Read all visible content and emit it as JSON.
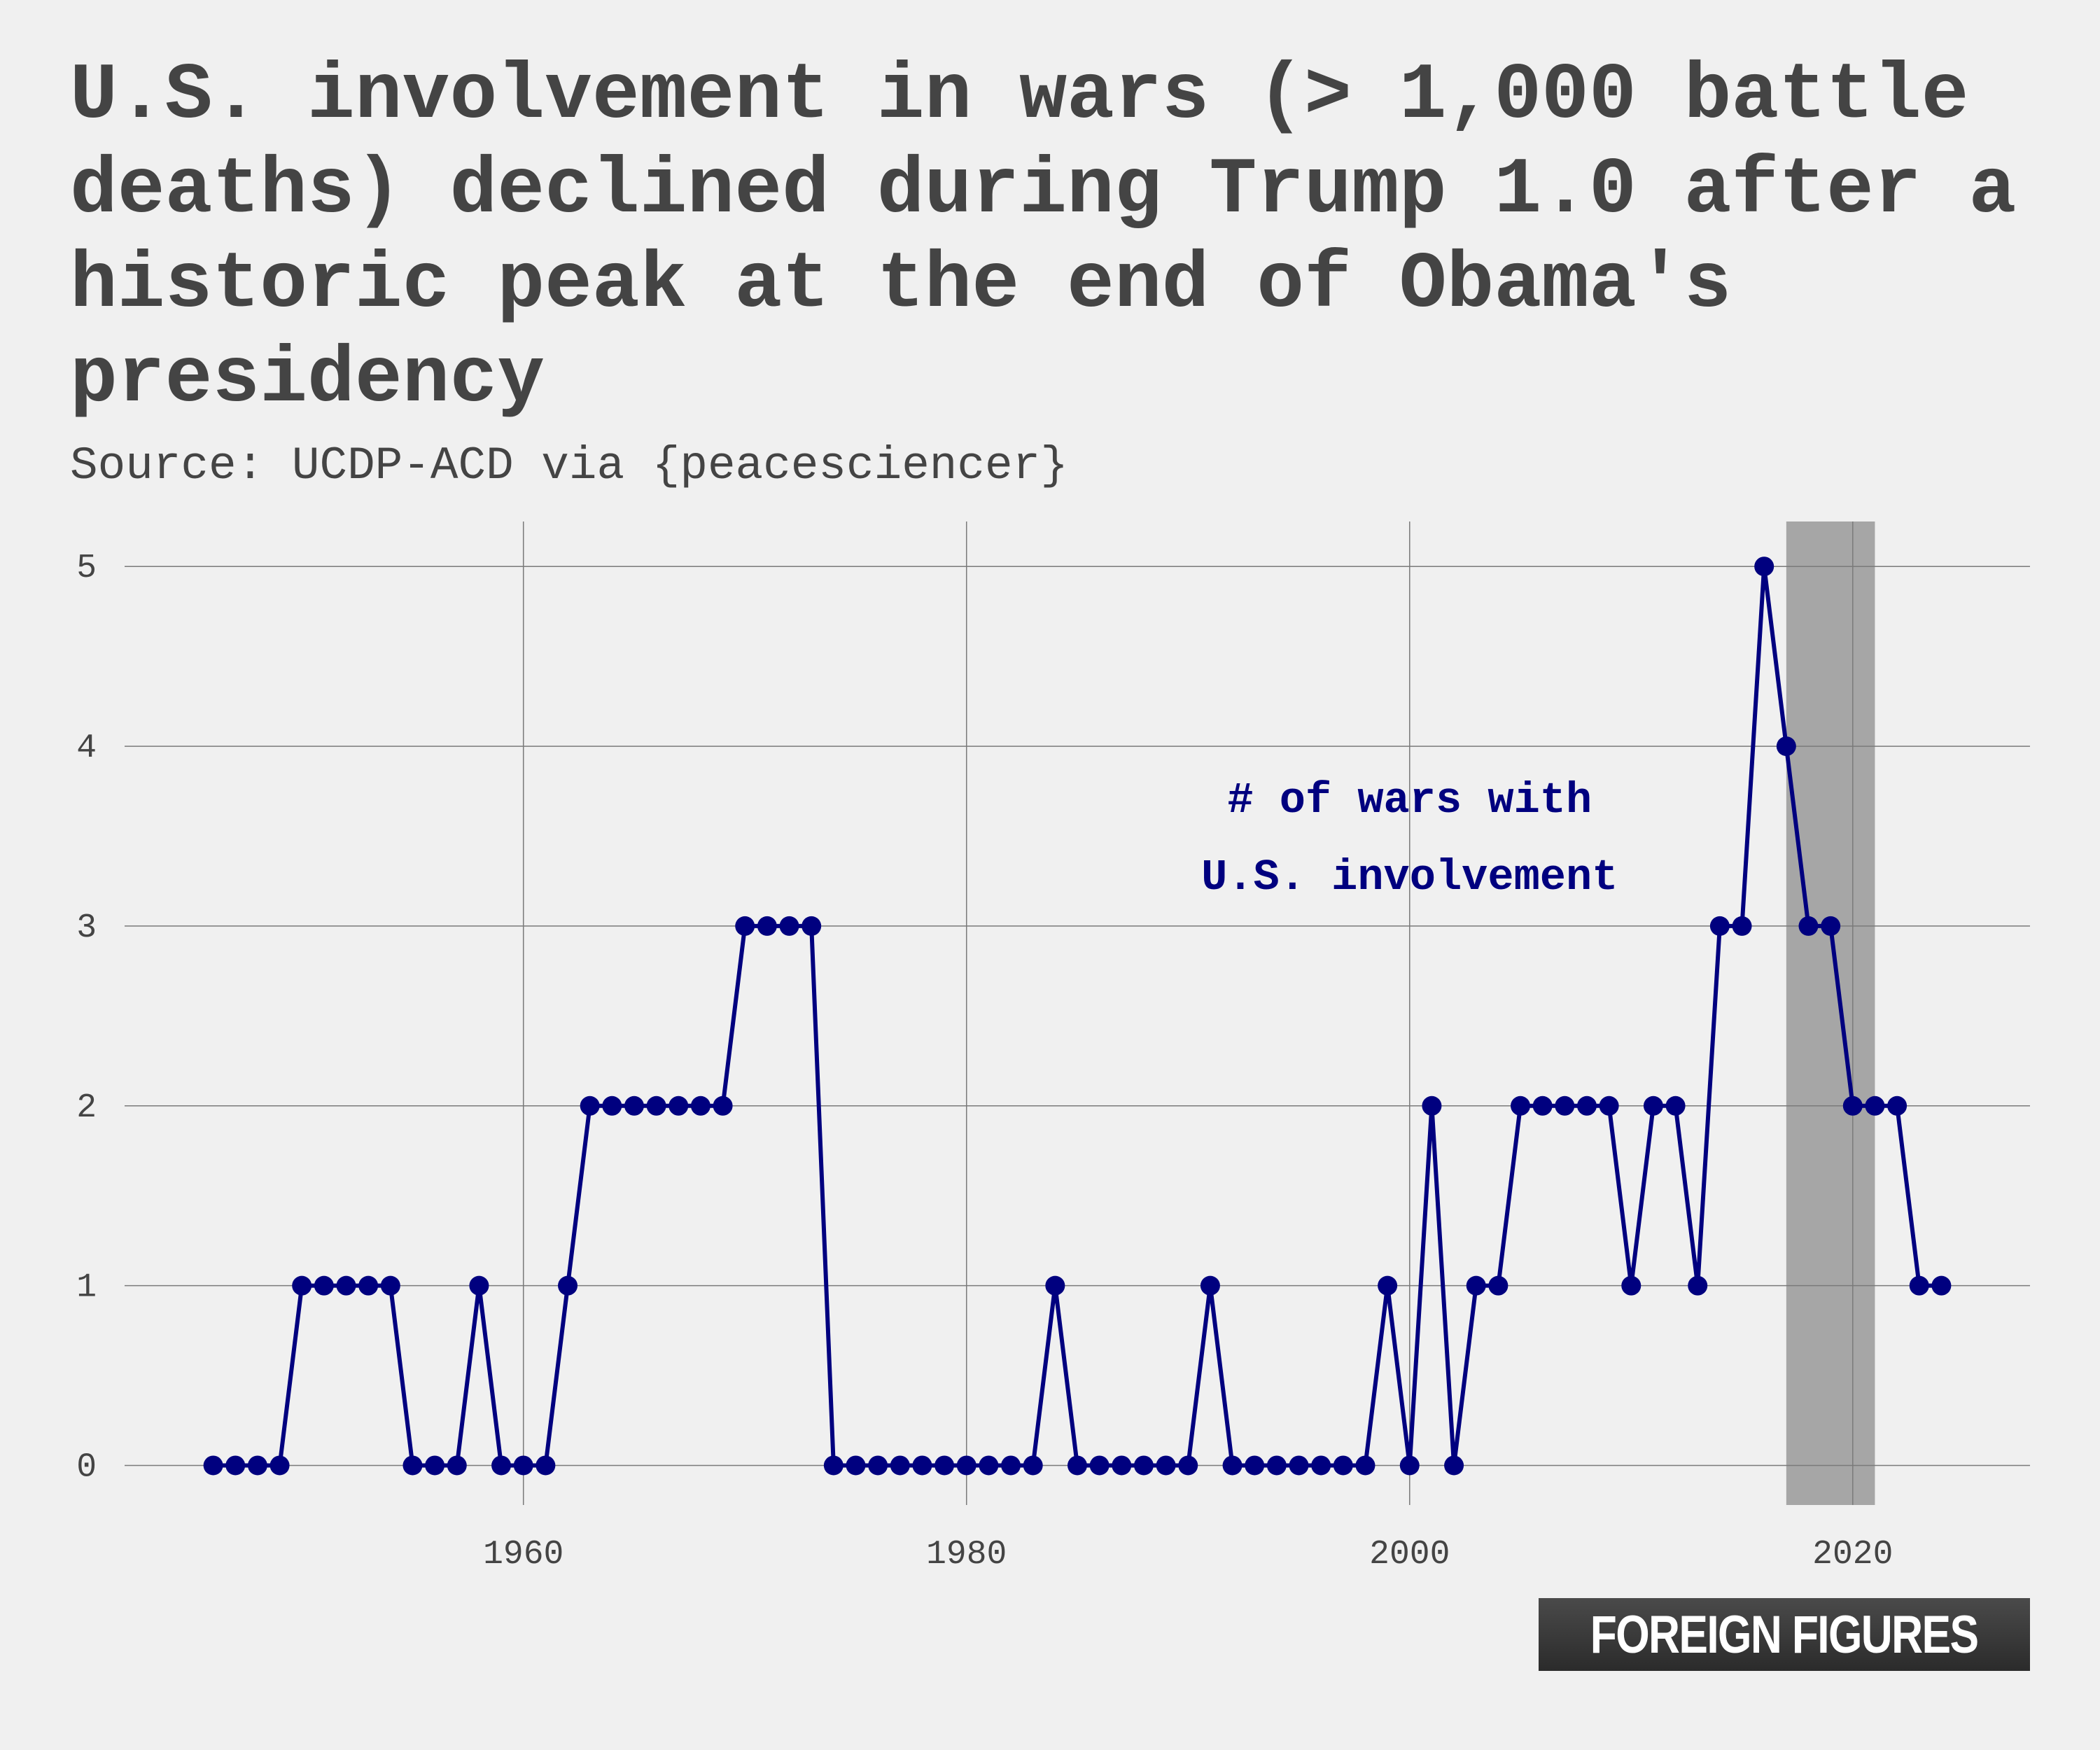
{
  "title": "U.S. involvement in wars (> 1,000 battle deaths) declined during Trump 1.0 after a historic peak at the end of Obama's presidency",
  "subtitle": "Source: UCDP-ACD via {peacesciencer}",
  "logo": "FOREIGN FIGURES",
  "colors": {
    "background": "#f0f0f0",
    "line": "#00007f",
    "grid": "#7a7a7a",
    "highlight": "#a6a6a6",
    "text": "#444444"
  },
  "chart_data": {
    "type": "line",
    "title": "",
    "xlabel": "",
    "ylabel": "",
    "xlim": [
      1942,
      2028
    ],
    "ylim": [
      -0.22,
      5.25
    ],
    "x_ticks": [
      1960,
      1980,
      2000,
      2020
    ],
    "y_ticks": [
      0,
      1,
      2,
      3,
      4,
      5
    ],
    "grid": true,
    "highlight_range": [
      2017,
      2021
    ],
    "annotation": [
      "# of wars with",
      "U.S. involvement"
    ],
    "series": [
      {
        "x": [
          1946,
          1947,
          1948,
          1949,
          1950,
          1951,
          1952,
          1953,
          1954,
          1955,
          1956,
          1957,
          1958,
          1959,
          1960,
          1961,
          1962,
          1963,
          1964,
          1965,
          1966,
          1967,
          1968,
          1969,
          1970,
          1971,
          1972,
          1973,
          1974,
          1975,
          1976,
          1977,
          1978,
          1979,
          1980,
          1981,
          1982,
          1983,
          1984,
          1985,
          1986,
          1987,
          1988,
          1989,
          1990,
          1991,
          1992,
          1993,
          1994,
          1995,
          1996,
          1997,
          1998,
          1999,
          2000,
          2001,
          2002,
          2003,
          2004,
          2005,
          2006,
          2007,
          2008,
          2009,
          2010,
          2011,
          2012,
          2013,
          2014,
          2015,
          2016,
          2017,
          2018,
          2019,
          2020,
          2021,
          2022,
          2023,
          2024
        ],
        "values": [
          0,
          0,
          0,
          0,
          1,
          1,
          1,
          1,
          1,
          0,
          0,
          0,
          1,
          0,
          0,
          0,
          1,
          2,
          2,
          2,
          2,
          2,
          2,
          2,
          3,
          3,
          3,
          3,
          0,
          0,
          0,
          0,
          0,
          0,
          0,
          0,
          0,
          0,
          1,
          0,
          0,
          0,
          0,
          0,
          0,
          1,
          0,
          0,
          0,
          0,
          0,
          0,
          0,
          1,
          0,
          2,
          0,
          1,
          1,
          2,
          2,
          2,
          2,
          2,
          1,
          2,
          2,
          1,
          3,
          3,
          5,
          4,
          3,
          3,
          2,
          2,
          2,
          1,
          1
        ]
      }
    ]
  }
}
